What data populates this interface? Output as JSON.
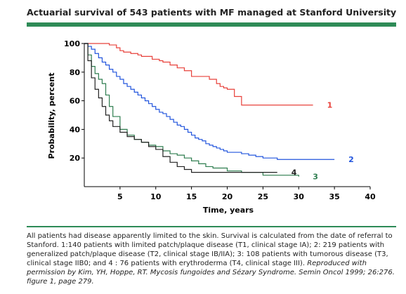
{
  "header": {
    "title": "Actuarial survival of 543 patients with MF managed at Stanford University"
  },
  "caption": {
    "text": "All patients had disease apparently limited to the skin. Survival is calculated from the date of referral to Stanford. 1:140 patients with limited patch/plaque disease (T1, clinical stage IA); 2: 219 patients with generalized patch/plaque disease (T2, clinical stage IB/IIA); 3: 108 patients with tumorous disease (T3, clinical stage IIB0; and 4 : 76 patients with erythroderma (T4, clinical stage III). ",
    "citation": "Reproduced with permission by Kim, YH, Hoppe, RT. Mycosis fungoides and Sézary Syndrome. Semin Oncol 1999; 26:276. figure 1, page 279."
  },
  "colors": {
    "accent": "#2e8b57",
    "series1": "#e8403a",
    "series2": "#2255dd",
    "series3": "#2e7d4f",
    "series4": "#222222"
  },
  "chart_data": {
    "type": "line",
    "step": true,
    "title": "",
    "xlabel": "Time, years",
    "ylabel": "Probability, percent",
    "xlim": [
      0,
      40
    ],
    "ylim": [
      0,
      100
    ],
    "xticks": [
      5,
      10,
      15,
      20,
      25,
      30,
      35,
      40
    ],
    "yticks": [
      20,
      40,
      60,
      80,
      100
    ],
    "series": [
      {
        "name": "1",
        "color": "#e8403a",
        "x": [
          0,
          3,
          3.5,
          4.5,
          5,
          5.5,
          6.5,
          7.5,
          8,
          9.5,
          10.5,
          11,
          12,
          13,
          14,
          15,
          17.5,
          18.5,
          19,
          19.5,
          20,
          21,
          22,
          32
        ],
        "y": [
          100,
          100,
          99,
          97,
          95,
          94,
          93,
          92,
          91,
          89,
          88,
          87,
          85,
          83,
          81,
          77,
          75,
          72,
          70,
          69,
          68,
          63,
          57,
          57
        ]
      },
      {
        "name": "2",
        "color": "#2255dd",
        "x": [
          0,
          0.5,
          1,
          1.5,
          2,
          2.5,
          3,
          3.5,
          4,
          4.5,
          5,
          5.5,
          6,
          6.5,
          7,
          7.5,
          8,
          8.5,
          9,
          9.5,
          10,
          10.5,
          11,
          11.5,
          12,
          12.5,
          13,
          13.5,
          14,
          14.5,
          15,
          15.5,
          16,
          16.5,
          17,
          17.5,
          18,
          18.5,
          19,
          19.5,
          20,
          22,
          23,
          24,
          25,
          27,
          29,
          31,
          35
        ],
        "y": [
          100,
          98,
          96,
          93,
          90,
          87,
          85,
          82,
          80,
          77,
          75,
          72,
          70,
          68,
          66,
          64,
          62,
          60,
          58,
          56,
          54,
          52,
          51,
          49,
          47,
          45,
          43,
          42,
          40,
          38,
          36,
          34,
          33,
          32,
          30,
          29,
          28,
          27,
          26,
          25,
          24,
          23,
          22,
          21,
          20,
          19,
          19,
          19,
          19
        ]
      },
      {
        "name": "3",
        "color": "#2e7d4f",
        "x": [
          0,
          0.5,
          1,
          1.5,
          2,
          2.5,
          3,
          3.5,
          4,
          5,
          6,
          7,
          8,
          9,
          10,
          11,
          12,
          13,
          14,
          15,
          16,
          17,
          18,
          20,
          22,
          25,
          30
        ],
        "y": [
          100,
          92,
          84,
          79,
          75,
          72,
          64,
          56,
          49,
          40,
          36,
          33,
          31,
          29,
          28,
          25,
          23,
          22,
          20,
          18,
          16,
          14,
          13,
          11,
          10,
          8,
          7
        ]
      },
      {
        "name": "4",
        "color": "#222222",
        "x": [
          0,
          0.5,
          1,
          1.5,
          2,
          2.5,
          3,
          3.5,
          4,
          5,
          6,
          7,
          8,
          9,
          10,
          11,
          12,
          13,
          14,
          15,
          18,
          20,
          22,
          27
        ],
        "y": [
          100,
          88,
          76,
          68,
          62,
          56,
          50,
          46,
          42,
          38,
          35,
          33,
          31,
          28,
          26,
          21,
          17,
          14,
          12,
          10,
          10,
          10,
          10,
          10
        ]
      }
    ]
  }
}
